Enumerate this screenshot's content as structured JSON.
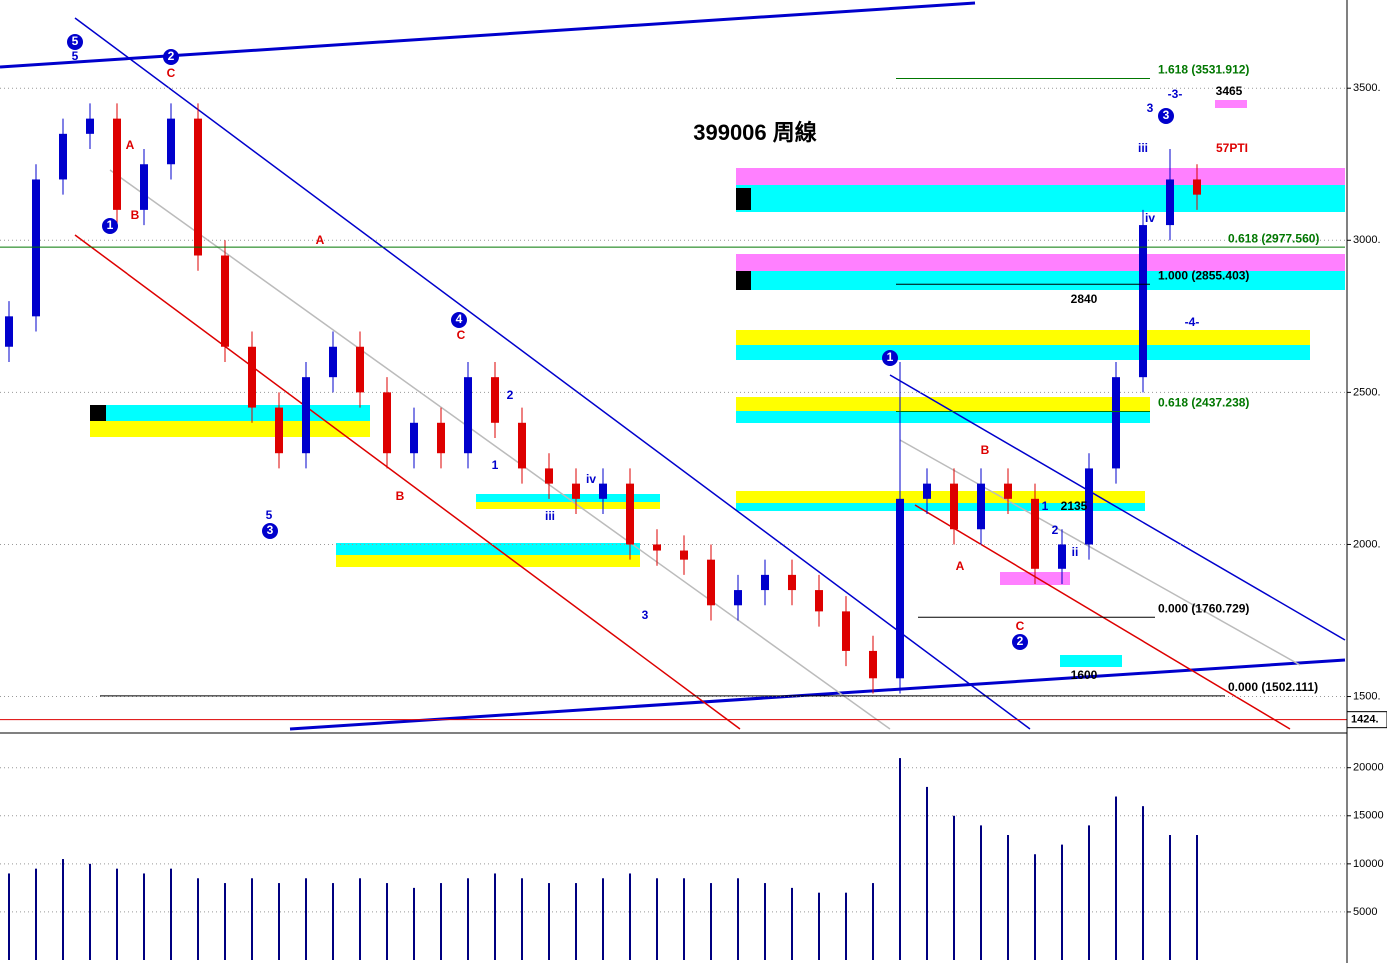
{
  "chart_data": [
    {
      "type": "candlestick",
      "title": "399006 周線",
      "open": [
        2650,
        2750,
        3200,
        3350,
        3400,
        3100,
        3250,
        3400,
        2950,
        2650,
        2450,
        2300,
        2550,
        2650,
        2500,
        2300,
        2400,
        2300,
        2550,
        2400,
        2250,
        2200,
        2150,
        2200,
        2000,
        1980,
        1950,
        1800,
        1850,
        1900,
        1850,
        1780,
        1650,
        1560,
        2150,
        2200,
        2050,
        2200,
        2150,
        1920,
        2000,
        2250,
        2550,
        3050,
        3200
      ],
      "high": [
        2800,
        3250,
        3400,
        3450,
        3450,
        3300,
        3450,
        3450,
        3000,
        2700,
        2500,
        2600,
        2700,
        2700,
        2550,
        2450,
        2450,
        2600,
        2600,
        2450,
        2300,
        2250,
        2250,
        2250,
        2050,
        2030,
        2000,
        1900,
        1950,
        1950,
        1900,
        1830,
        1700,
        2600,
        2250,
        2250,
        2250,
        2250,
        2200,
        2050,
        2300,
        2600,
        3100,
        3300,
        3250
      ],
      "low": [
        2600,
        2700,
        3150,
        3300,
        3050,
        3050,
        3200,
        2900,
        2600,
        2400,
        2250,
        2250,
        2500,
        2450,
        2250,
        2250,
        2250,
        2250,
        2350,
        2200,
        2150,
        2100,
        2100,
        1950,
        1930,
        1900,
        1750,
        1750,
        1800,
        1800,
        1730,
        1600,
        1510,
        1510,
        2100,
        2000,
        2000,
        2100,
        1870,
        1870,
        1950,
        2200,
        2500,
        3000,
        3100
      ],
      "close": [
        2750,
        3200,
        3350,
        3400,
        3100,
        3250,
        3400,
        2950,
        2650,
        2450,
        2300,
        2550,
        2650,
        2500,
        2300,
        2400,
        2300,
        2550,
        2400,
        2250,
        2200,
        2150,
        2200,
        2000,
        1980,
        1950,
        1800,
        1850,
        1900,
        1850,
        1780,
        1650,
        1560,
        2150,
        2200,
        2050,
        2200,
        2150,
        1920,
        2000,
        2250,
        2550,
        3050,
        3200,
        3150
      ],
      "up_color": "#0000cc",
      "down_color": "#dd0000",
      "ylim": [
        1390,
        3790
      ],
      "yticks": [
        {
          "value": 3500,
          "label": "3500."
        },
        {
          "value": 3000,
          "label": "3000."
        },
        {
          "value": 2500,
          "label": "2500."
        },
        {
          "value": 2000,
          "label": "2000."
        },
        {
          "value": 1500,
          "label": "1500."
        }
      ],
      "grid": true,
      "levels": [
        {
          "value": 3531.912,
          "label": "1.618 (3531.912)",
          "color": "#007700"
        },
        {
          "value": 2977.56,
          "label": "0.618 (2977.560)",
          "color": "#007700"
        },
        {
          "value": 2855.403,
          "label": "1.000 (2855.403)",
          "color": "#000000"
        },
        {
          "value": 2437.238,
          "label": "0.618 (2437.238)",
          "color": "#007700"
        },
        {
          "value": 1760.729,
          "label": "0.000 (1760.729)",
          "color": "#000000"
        },
        {
          "value": 1502.111,
          "label": "0.000 (1502.111)",
          "color": "#000000"
        }
      ],
      "last_level": {
        "value": 1424,
        "label": "1424."
      },
      "annotations": [
        "5",
        "5",
        "2",
        "C",
        "1",
        "B",
        "A",
        "A",
        "3",
        "5",
        "4",
        "C",
        "B",
        "iii",
        "iv",
        "3",
        "1",
        "2",
        "C",
        "A",
        "B",
        "3",
        "3",
        "iii",
        "iv",
        "2",
        "ii",
        "1",
        "-3-",
        "-4-",
        "1",
        "2",
        "3465",
        "2840",
        "2135",
        "1600",
        "57PTI"
      ]
    },
    {
      "type": "bar",
      "values": [
        9000,
        9500,
        10500,
        10000,
        9500,
        9000,
        9500,
        8500,
        8000,
        8500,
        8000,
        8500,
        8000,
        8500,
        8000,
        7500,
        8000,
        8500,
        9000,
        8500,
        8000,
        8000,
        8500,
        9000,
        8500,
        8500,
        8000,
        8500,
        8000,
        7500,
        7000,
        7000,
        8000,
        21000,
        18000,
        15000,
        14000,
        13000,
        11000,
        12000,
        14000,
        17000,
        16000,
        13000,
        13000
      ],
      "color": "#000080",
      "ylim": [
        0,
        23400
      ],
      "yticks": [
        20000,
        15000,
        10000,
        5000
      ],
      "grid": true
    }
  ]
}
